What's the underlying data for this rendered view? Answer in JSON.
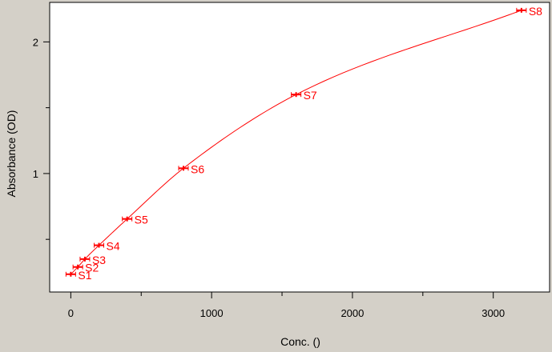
{
  "chart_data": {
    "type": "scatter",
    "title": "",
    "xlabel": "Conc. ()",
    "ylabel": "Absorbance (OD)",
    "xlim": [
      -150,
      3400
    ],
    "ylim": [
      0.1,
      2.3
    ],
    "x_ticks_major": [
      0,
      1000,
      2000,
      3000
    ],
    "x_ticks_minor": [
      500,
      1500,
      2500
    ],
    "y_ticks_major": [
      1,
      2
    ],
    "y_ticks_minor": [
      0.5,
      1.5
    ],
    "grid": false,
    "legend": "none",
    "series_color": "#ff0000",
    "fit_curve": true,
    "points": [
      {
        "label": "S1",
        "x": 0,
        "y": 0.235
      },
      {
        "label": "S2",
        "x": 50,
        "y": 0.29
      },
      {
        "label": "S3",
        "x": 100,
        "y": 0.35
      },
      {
        "label": "S4",
        "x": 200,
        "y": 0.455
      },
      {
        "label": "S5",
        "x": 400,
        "y": 0.655
      },
      {
        "label": "S6",
        "x": 800,
        "y": 1.04
      },
      {
        "label": "S7",
        "x": 1600,
        "y": 1.6
      },
      {
        "label": "S8",
        "x": 3200,
        "y": 2.24
      }
    ]
  }
}
